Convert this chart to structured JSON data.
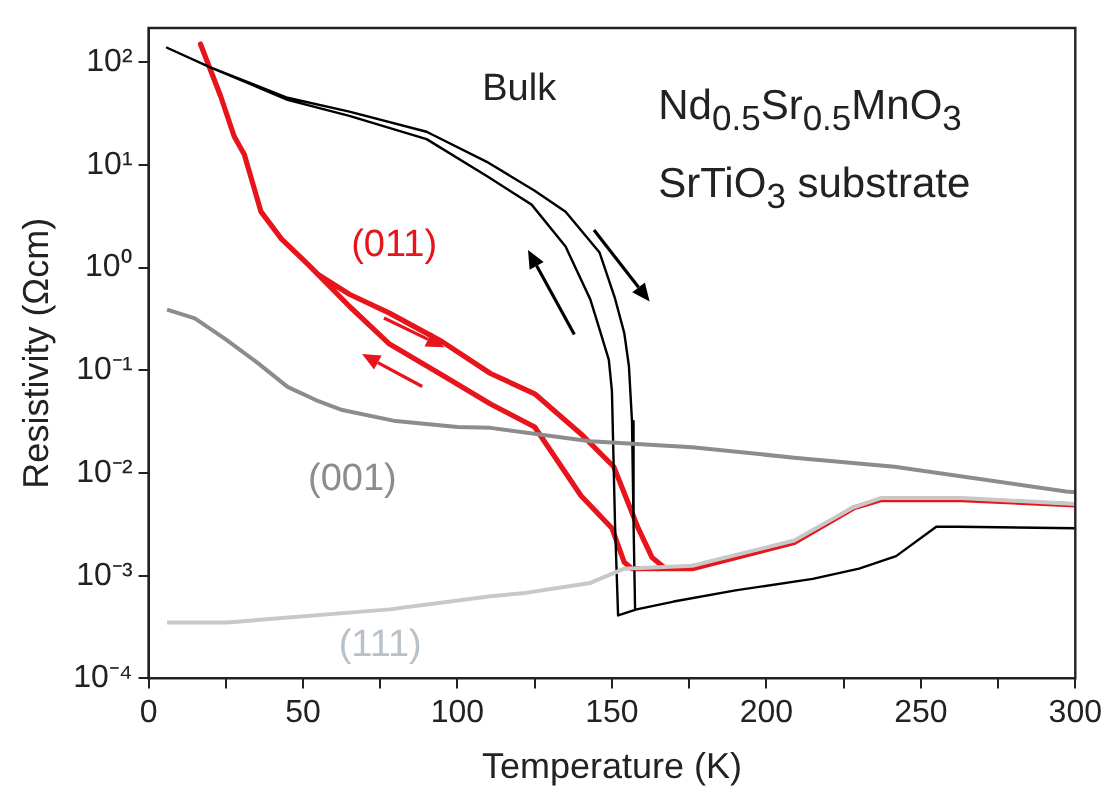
{
  "chart_data": {
    "type": "line",
    "xlabel": "Temperature (K)",
    "ylabel": "Resistivity (Ωcm)",
    "annotations": [
      "Nd$_{0.5}$Sr$_{0.5}$MnO$_{3}$",
      "SrTiO$_{3}$ substrate"
    ],
    "log": "y",
    "legend": false,
    "marker": "none",
    "line_style": "solid",
    "xlim": [
      0,
      300
    ],
    "xticks": [
      0,
      {
        "value": 25,
        "label": null
      },
      50,
      {
        "value": 75,
        "label": null
      },
      100,
      {
        "value": 125,
        "label": null
      },
      150,
      {
        "value": 175,
        "label": null
      },
      200,
      {
        "value": 225,
        "label": null
      },
      250,
      {
        "value": 275,
        "label": null
      },
      300
    ],
    "ylim": [
      0.0001,
      215
    ],
    "yticks": [
      {
        "value": 0.0001,
        "label": "10⁻⁴"
      },
      {
        "value": 0.001,
        "label": "10⁻³"
      },
      {
        "value": 0.01,
        "label": "10⁻²"
      },
      {
        "value": 0.1,
        "label": "10⁻¹"
      },
      {
        "value": 1,
        "label": "10⁰"
      },
      {
        "value": 10,
        "label": "10¹"
      },
      {
        "value": 100,
        "label": "10²"
      }
    ],
    "series": [
      {
        "name": "(111)",
        "color": "#c8c8c8",
        "x": [
          6,
          25.5,
          78,
          110.7,
          122,
          143,
          154,
          176,
          209,
          228,
          237,
          263,
          300
        ],
        "values": [
          0.00035,
          0.00035,
          0.00047,
          0.00063,
          0.00068,
          0.00085,
          0.00117,
          0.00125,
          0.0022,
          0.0046,
          0.0057,
          0.0057,
          0.005
        ]
      },
      {
        "name": "(001)",
        "color": "#8c8c8c",
        "x": [
          6,
          15,
          25,
          35,
          45,
          55,
          62.7,
          80,
          100,
          110.7,
          143,
          176,
          209,
          241.5,
          297,
          300
        ],
        "values": [
          0.39,
          0.32,
          0.2,
          0.12,
          0.069,
          0.05,
          0.041,
          0.032,
          0.028,
          0.0275,
          0.0204,
          0.0178,
          0.0141,
          0.0115,
          0.0066,
          0.0065
        ]
      },
      {
        "name": "Bulk",
        "color": "#000000",
        "x": [
          300,
          262,
          255,
          242,
          230,
          215,
          190,
          170,
          158,
          152,
          151,
          150,
          149,
          146,
          143,
          135,
          124,
          110,
          90,
          65,
          45,
          20,
          6,
          20,
          45,
          65,
          90,
          110,
          125,
          135,
          146,
          151,
          154,
          155.5,
          156.5,
          157,
          157.5
        ],
        "values": [
          0.0029,
          0.003,
          0.003,
          0.00155,
          0.00117,
          0.00093,
          0.00072,
          0.00056,
          0.00047,
          0.00041,
          0.0032,
          0.063,
          0.126,
          0.25,
          0.49,
          1.6,
          4.1,
          7.6,
          17.8,
          30,
          43,
          89,
          138,
          89,
          45,
          33,
          21,
          10.5,
          5.6,
          3.5,
          1.4,
          0.5,
          0.23,
          0.11,
          0.032,
          0.0032,
          0.00047
        ]
      },
      {
        "name": "(011)",
        "color": "#e8141c",
        "x": [
          300,
          263,
          237,
          228.5,
          209,
          176,
          165,
          156.5,
          154,
          150,
          140,
          125,
          110.7,
          95,
          78,
          65,
          55,
          51.7,
          43,
          36.4,
          31,
          27.7,
          23.4,
          16.8,
          23.4,
          27.7,
          31,
          36.4,
          43,
          51.7,
          55,
          65,
          78,
          95,
          110.7,
          125,
          140,
          150.6,
          158.5,
          163,
          167.4,
          176
        ],
        "values": [
          0.0049,
          0.0055,
          0.0055,
          0.0046,
          0.0021,
          0.00117,
          0.00117,
          0.00117,
          0.00135,
          0.0029,
          0.006,
          0.028,
          0.047,
          0.09,
          0.18,
          0.42,
          0.85,
          1.07,
          1.9,
          3.5,
          12.6,
          19,
          46,
          150,
          46,
          19,
          12.6,
          3.5,
          1.9,
          1.07,
          0.85,
          0.55,
          0.36,
          0.19,
          0.093,
          0.059,
          0.024,
          0.0115,
          0.0029,
          0.0015,
          0.00117,
          0.00117
        ]
      }
    ]
  }
}
